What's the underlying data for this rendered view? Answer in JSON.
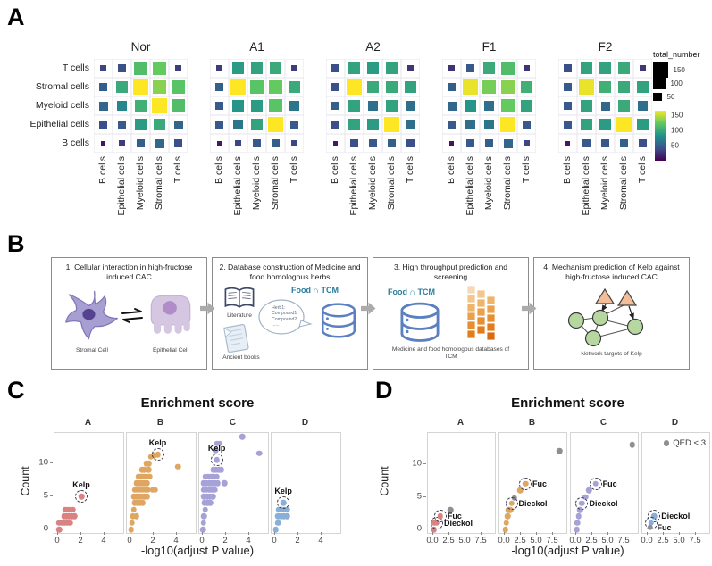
{
  "panels": {
    "a": "A",
    "b": "B",
    "c": "C",
    "d": "D"
  },
  "panel_b": {
    "boxes": [
      {
        "title": "1. Cellular interaction in high-fructose induced CAC",
        "caption_left": "Stromal Cell",
        "caption_right": "Epithelial Cell"
      },
      {
        "title": "2. Database construction of  Medicine and food homologous herbs",
        "literature": "Literature",
        "ancient_books": "Ancient books",
        "bubble": [
          "Herb1:",
          "Compound1",
          "Compound2",
          "......"
        ],
        "food_tcm": "Food ∩ TCM"
      },
      {
        "title": "3. High throughput prediction and screening",
        "food_tcm": "Food ∩ TCM",
        "caption": "Medicine and food homologous databases of TCM"
      },
      {
        "title": "4. Mechanism prediction of Kelp against high-fructose induced CAC",
        "caption": "Network targets of Kelp"
      }
    ]
  },
  "chart_data": [
    {
      "id": "panel_a",
      "type": "heatmap",
      "encoding": "square size and viridis color both encode total_number",
      "groups": [
        "Nor",
        "A1",
        "A2",
        "F1",
        "F2"
      ],
      "row_labels": [
        "T cells",
        "Stromal cells",
        "Myeloid cells",
        "Epithelial cells",
        "B cells"
      ],
      "col_labels": [
        "B cells",
        "Epithelial cells",
        "Myeloid cells",
        "Stromal cells",
        "T cells"
      ],
      "value_range": [
        0,
        165
      ],
      "legend": {
        "title": "total_number",
        "size_ticks": [
          150,
          100,
          50
        ],
        "color_ticks": [
          150,
          100,
          50
        ]
      },
      "matrices": {
        "Nor": [
          [
            35,
            40,
            115,
            125,
            30
          ],
          [
            50,
            100,
            165,
            135,
            120
          ],
          [
            55,
            75,
            105,
            165,
            115
          ],
          [
            40,
            45,
            90,
            100,
            55
          ],
          [
            10,
            30,
            50,
            55,
            40
          ]
        ],
        "A1": [
          [
            30,
            90,
            95,
            100,
            30
          ],
          [
            50,
            165,
            120,
            125,
            100
          ],
          [
            45,
            85,
            90,
            120,
            65
          ],
          [
            45,
            65,
            95,
            165,
            45
          ],
          [
            12,
            35,
            45,
            50,
            35
          ]
        ],
        "A2": [
          [
            40,
            95,
            90,
            95,
            28
          ],
          [
            40,
            165,
            100,
            100,
            95
          ],
          [
            50,
            95,
            60,
            95,
            60
          ],
          [
            40,
            95,
            90,
            165,
            60
          ],
          [
            12,
            40,
            45,
            50,
            40
          ]
        ],
        "F1": [
          [
            25,
            45,
            100,
            115,
            25
          ],
          [
            50,
            160,
            130,
            135,
            105
          ],
          [
            55,
            85,
            60,
            125,
            95
          ],
          [
            45,
            60,
            65,
            165,
            45
          ],
          [
            10,
            45,
            50,
            55,
            35
          ]
        ],
        "F2": [
          [
            40,
            95,
            95,
            100,
            28
          ],
          [
            45,
            160,
            105,
            100,
            95
          ],
          [
            45,
            95,
            55,
            100,
            60
          ],
          [
            45,
            95,
            90,
            165,
            90
          ],
          [
            12,
            45,
            45,
            50,
            40
          ]
        ]
      }
    },
    {
      "id": "panel_c",
      "type": "scatter",
      "title": "Enrichment score",
      "xlabel": "-log10(adjust P value)",
      "ylabel": "Count",
      "x_ticks": [
        "0",
        "2",
        "4"
      ],
      "x_tick_values": [
        0,
        2,
        4
      ],
      "y_ticks": [
        0,
        5,
        10
      ],
      "facets": [
        {
          "label": "A",
          "color": "#d98282",
          "points": [
            [
              0.08,
              0
            ],
            [
              0.1,
              1
            ],
            [
              0.32,
              1
            ],
            [
              0.55,
              1
            ],
            [
              0.78,
              1
            ],
            [
              1.0,
              1
            ],
            [
              0.5,
              2
            ],
            [
              0.73,
              2
            ],
            [
              0.96,
              2
            ],
            [
              1.19,
              2
            ],
            [
              1.42,
              2
            ],
            [
              0.6,
              3
            ],
            [
              0.83,
              3
            ],
            [
              1.06,
              3
            ],
            [
              1.29,
              3
            ]
          ],
          "gray_points": [],
          "annotations": [
            {
              "text": "Kelp",
              "x": 2.0,
              "y": 5,
              "side": "above",
              "dashed": true
            }
          ]
        },
        {
          "label": "B",
          "color": "#dfa662",
          "points": [
            [
              0.05,
              0
            ],
            [
              0.15,
              1
            ],
            [
              0.2,
              2
            ],
            [
              0.5,
              2
            ],
            [
              0.3,
              3
            ],
            [
              0.35,
              4
            ],
            [
              0.58,
              4
            ],
            [
              0.81,
              4
            ],
            [
              1.04,
              4
            ],
            [
              0.3,
              5
            ],
            [
              0.53,
              5
            ],
            [
              0.76,
              5
            ],
            [
              0.99,
              5
            ],
            [
              1.22,
              5
            ],
            [
              1.45,
              5
            ],
            [
              0.35,
              6
            ],
            [
              0.58,
              6
            ],
            [
              0.81,
              6
            ],
            [
              1.04,
              6
            ],
            [
              1.27,
              6
            ],
            [
              1.5,
              6
            ],
            [
              1.9,
              6
            ],
            [
              2.13,
              6
            ],
            [
              0.5,
              7
            ],
            [
              0.73,
              7
            ],
            [
              0.96,
              7
            ],
            [
              1.19,
              7
            ],
            [
              1.42,
              7
            ],
            [
              0.7,
              8
            ],
            [
              0.93,
              8
            ],
            [
              1.16,
              8
            ],
            [
              1.39,
              8
            ],
            [
              1.62,
              8
            ],
            [
              1.0,
              9
            ],
            [
              1.23,
              9
            ],
            [
              1.55,
              9
            ],
            [
              4.1,
              9.5
            ],
            [
              1.35,
              10
            ],
            [
              1.6,
              10
            ],
            [
              1.75,
              11
            ],
            [
              2.0,
              11.2
            ]
          ],
          "gray_points": [],
          "annotations": [
            {
              "text": "Kelp",
              "x": 2.35,
              "y": 11.3,
              "side": "above",
              "dashed": true
            }
          ]
        },
        {
          "label": "C",
          "color": "#a6a2d8",
          "points": [
            [
              0.03,
              0
            ],
            [
              0.05,
              1
            ],
            [
              0.1,
              2
            ],
            [
              0.2,
              3
            ],
            [
              0.15,
              4
            ],
            [
              0.4,
              4
            ],
            [
              0.65,
              4
            ],
            [
              0.1,
              5
            ],
            [
              0.35,
              5
            ],
            [
              0.6,
              5
            ],
            [
              0.85,
              5
            ],
            [
              0.05,
              6
            ],
            [
              0.3,
              6
            ],
            [
              0.55,
              6
            ],
            [
              0.8,
              6
            ],
            [
              1.05,
              6
            ],
            [
              0.05,
              7
            ],
            [
              0.3,
              7
            ],
            [
              0.55,
              7
            ],
            [
              0.8,
              7
            ],
            [
              1.05,
              7
            ],
            [
              1.3,
              7
            ],
            [
              1.85,
              7
            ],
            [
              0.2,
              8
            ],
            [
              0.45,
              8
            ],
            [
              0.7,
              8
            ],
            [
              0.95,
              8
            ],
            [
              1.2,
              8
            ],
            [
              0.9,
              9
            ],
            [
              1.15,
              9
            ],
            [
              1.4,
              9
            ],
            [
              1.6,
              9
            ],
            [
              4.85,
              11.5
            ],
            [
              1.1,
              12
            ],
            [
              1.2,
              13
            ],
            [
              1.45,
              13
            ],
            [
              3.4,
              14
            ]
          ],
          "gray_points": [],
          "annotations": [
            {
              "text": "Kelp",
              "x": 1.2,
              "y": 10.5,
              "side": "above",
              "dashed": true
            }
          ]
        },
        {
          "label": "D",
          "color": "#88afd8",
          "points": [
            [
              0.05,
              0
            ],
            [
              0.25,
              1
            ],
            [
              0.25,
              2
            ],
            [
              0.5,
              2
            ],
            [
              0.75,
              2
            ],
            [
              1.0,
              2
            ],
            [
              0.3,
              3
            ],
            [
              0.55,
              3
            ],
            [
              0.8,
              3
            ],
            [
              1.05,
              3
            ]
          ],
          "gray_points": [],
          "annotations": [
            {
              "text": "Kelp",
              "x": 0.7,
              "y": 4,
              "side": "above",
              "dashed": true
            }
          ]
        }
      ]
    },
    {
      "id": "panel_d",
      "type": "scatter",
      "title": "Enrichment score",
      "xlabel": "-log10(adjust P value)",
      "ylabel": "Count",
      "x_ticks": [
        "0.0",
        "2.5",
        "5.0",
        "7.5"
      ],
      "x_tick_values": [
        0,
        2.5,
        5,
        7.5
      ],
      "y_ticks": [
        0,
        5,
        10
      ],
      "legend": {
        "label": "QED < 3",
        "color": "#8f8f8f"
      },
      "facets": [
        {
          "label": "A",
          "color": "#d98282",
          "points": [
            [
              0.1,
              0
            ],
            [
              0.2,
              1
            ]
          ],
          "gray_points": [
            [
              2.7,
              3
            ]
          ],
          "annotations": [
            {
              "text": "Dieckol",
              "x": 0.55,
              "y": 1,
              "side": "right",
              "dashed": true
            },
            {
              "text": "Fuc",
              "x": 1.1,
              "y": 2,
              "side": "right",
              "dashed": true
            }
          ]
        },
        {
          "label": "B",
          "color": "#dfa662",
          "points": [
            [
              0.1,
              0
            ],
            [
              0.25,
              1
            ],
            [
              0.45,
              2
            ],
            [
              0.6,
              3
            ],
            [
              0.9,
              3
            ],
            [
              2.4,
              6
            ]
          ],
          "gray_points": [
            [
              1.5,
              4.8
            ],
            [
              8.5,
              12
            ]
          ],
          "annotations": [
            {
              "text": "Dieckol",
              "x": 1.05,
              "y": 4,
              "side": "right",
              "dashed": true
            },
            {
              "text": "Fuc",
              "x": 3.2,
              "y": 7,
              "side": "right",
              "dashed": true
            }
          ]
        },
        {
          "label": "C",
          "color": "#a6a2d8",
          "points": [
            [
              0.1,
              0
            ],
            [
              0.2,
              1
            ],
            [
              0.35,
              2
            ],
            [
              0.6,
              3
            ],
            [
              1.4,
              5
            ],
            [
              2.0,
              6
            ]
          ],
          "gray_points": [
            [
              8.7,
              13
            ]
          ],
          "annotations": [
            {
              "text": "Dieckol",
              "x": 0.9,
              "y": 4,
              "side": "right",
              "dashed": true
            },
            {
              "text": "Fuc",
              "x": 3.0,
              "y": 7,
              "side": "right",
              "dashed": true
            }
          ]
        },
        {
          "label": "D",
          "color": "#88afd8",
          "points": [],
          "gray_points": [],
          "annotations": [
            {
              "text": "Dieckol",
              "x": 1.0,
              "y": 2,
              "side": "right",
              "dashed": true
            },
            {
              "text": "",
              "x": 0.55,
              "y": 1,
              "side": "right",
              "dashed": true
            },
            {
              "text": "Fuc",
              "x": 0.35,
              "y": 0.3,
              "side": "right",
              "dashed": false,
              "gray": true
            }
          ]
        }
      ]
    }
  ]
}
